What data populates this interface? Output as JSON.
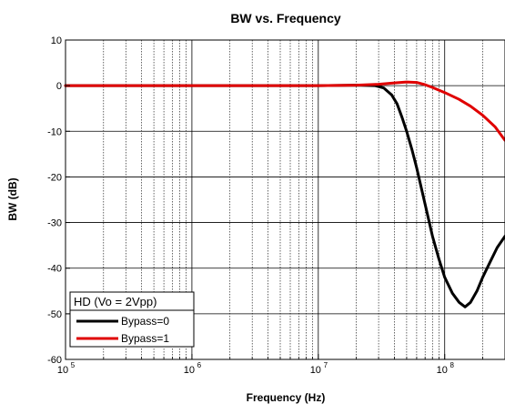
{
  "chart_data": {
    "type": "line",
    "title": "BW vs. Frequency",
    "xlabel": "Frequency (Hz)",
    "ylabel": "BW (dB)",
    "x_scale": "log",
    "xlim": [
      100000,
      300000000
    ],
    "ylim": [
      -60,
      10
    ],
    "x_tick_labels": [
      {
        "base": "10",
        "exp": "5"
      },
      {
        "base": "10",
        "exp": "6"
      },
      {
        "base": "10",
        "exp": "7"
      },
      {
        "base": "10",
        "exp": "8"
      }
    ],
    "y_ticks": [
      "10",
      "0",
      "-10",
      "-20",
      "-30",
      "-40",
      "-50",
      "-60"
    ],
    "grid": true,
    "legend": {
      "title": "HD (Vo = 2Vpp)",
      "position": "bottom-left"
    },
    "series": [
      {
        "name": "Bypass=0",
        "color": "#000000",
        "x": [
          100000,
          1000000,
          10000000,
          20000000,
          28000000,
          33000000,
          38000000,
          42000000,
          46000000,
          50000000,
          55000000,
          60000000,
          70000000,
          80000000,
          90000000,
          100000000,
          115000000,
          130000000,
          145000000,
          160000000,
          180000000,
          200000000,
          230000000,
          260000000,
          300000000
        ],
        "y": [
          0,
          0,
          0,
          0.1,
          0,
          -0.5,
          -2,
          -4,
          -7,
          -10,
          -14,
          -18,
          -26,
          -33,
          -38,
          -42,
          -45.5,
          -47.5,
          -48.5,
          -47.5,
          -45,
          -42,
          -38.5,
          -35.5,
          -33
        ]
      },
      {
        "name": "Bypass=1",
        "color": "#e00000",
        "x": [
          100000,
          1000000,
          10000000,
          20000000,
          30000000,
          40000000,
          50000000,
          60000000,
          70000000,
          80000000,
          100000000,
          130000000,
          160000000,
          200000000,
          250000000,
          300000000
        ],
        "y": [
          0,
          0,
          0,
          0.1,
          0.3,
          0.6,
          0.8,
          0.7,
          0.2,
          -0.4,
          -1.5,
          -3,
          -4.5,
          -6.5,
          -9,
          -12
        ]
      }
    ]
  }
}
